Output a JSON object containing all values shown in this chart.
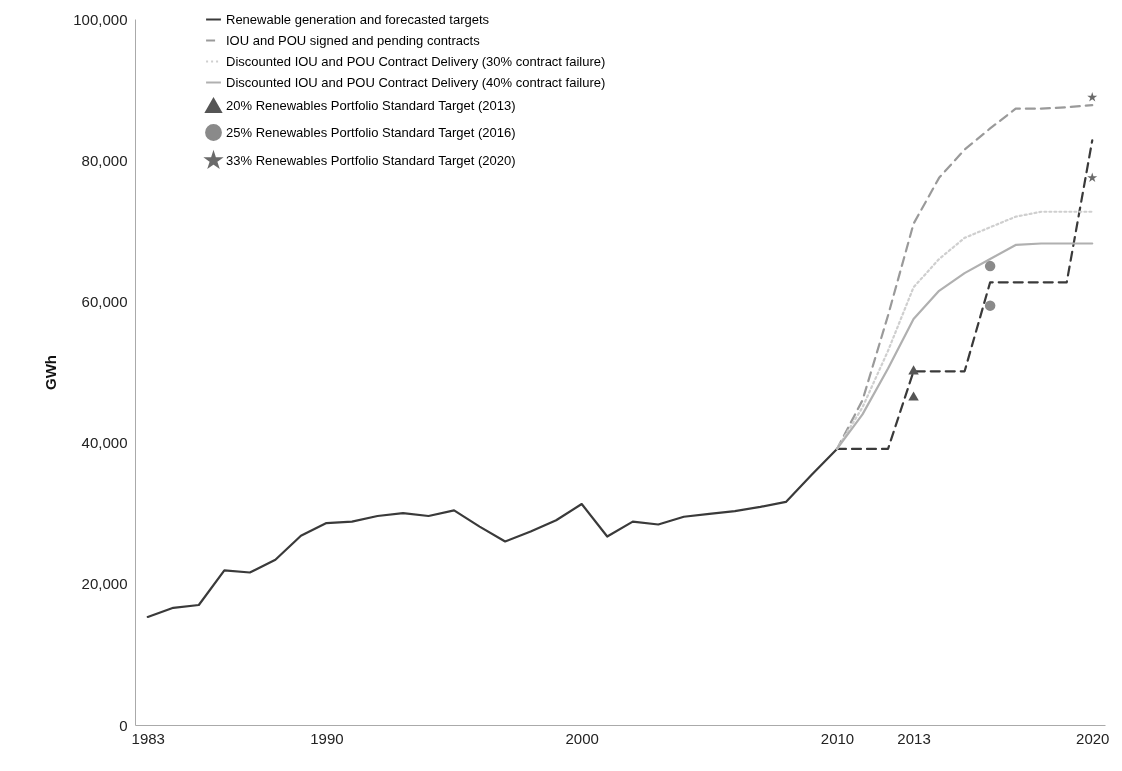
{
  "chart_data": {
    "type": "line",
    "ylabel": "GWh",
    "xlim": [
      1982.5,
      2020.5
    ],
    "xticks": [
      1983,
      1990,
      2000,
      2010,
      2013,
      2020
    ],
    "ylim": [
      0,
      100000
    ],
    "yticks": [
      0,
      {
        "value": 20000,
        "label": "20,000"
      },
      {
        "value": 40000,
        "label": "40,000"
      },
      {
        "value": 60000,
        "label": "60,000"
      },
      {
        "value": 80000,
        "label": "80,000"
      },
      {
        "value": 100000,
        "label": "100,000"
      }
    ],
    "legend": "top left",
    "series": [
      {
        "name": "Renewable generation and forecasted targets",
        "color": "#3a3a3a",
        "line_style": "solid",
        "x": [
          1983,
          1984,
          1985,
          1986,
          1987,
          1988,
          1989,
          1990,
          1991,
          1992,
          1993,
          1994,
          1995,
          1996,
          1997,
          1998,
          1999,
          2000,
          2001,
          2002,
          2003,
          2004,
          2005,
          2006,
          2007,
          2008,
          2009,
          2010
        ],
        "values": [
          15300,
          16600,
          17000,
          21900,
          21600,
          23400,
          26800,
          28600,
          28800,
          29600,
          30000,
          29600,
          30400,
          28100,
          26000,
          27400,
          29000,
          31300,
          26700,
          28800,
          28400,
          29500,
          29900,
          30300,
          30900,
          31600,
          35400,
          39100
        ]
      },
      {
        "color": "#3a3a3a",
        "line_style": "dashed",
        "x": [
          2010,
          2012,
          2013,
          2015,
          2016,
          2019,
          2020
        ],
        "values": [
          39100,
          39100,
          50100,
          50100,
          62700,
          62700,
          82800
        ]
      },
      {
        "name": "IOU and POU signed and pending contracts",
        "color": "#9a9a9a",
        "line_style": "dashed",
        "x": [
          2010,
          2011,
          2012,
          2013,
          2014,
          2015,
          2016,
          2017,
          2018,
          2019,
          2020
        ],
        "values": [
          39100,
          46000,
          58000,
          71000,
          77500,
          81500,
          84500,
          87300,
          87300,
          87500,
          87800
        ]
      },
      {
        "name": "Discounted IOU and POU Contract Delivery (30% contract failure)",
        "color": "#cfcfcf",
        "line_style": "dotted",
        "x": [
          2010,
          2011,
          2012,
          2013,
          2014,
          2015,
          2016,
          2017,
          2018,
          2019,
          2020
        ],
        "values": [
          39100,
          45000,
          53000,
          62000,
          66000,
          69000,
          70500,
          72000,
          72700,
          72700,
          72700
        ]
      },
      {
        "name": "Discounted IOU and POU Contract Delivery (40% contract failure)",
        "color": "#b0b0b0",
        "line_style": "solid",
        "x": [
          2010,
          2011,
          2012,
          2013,
          2014,
          2015,
          2016,
          2017,
          2018,
          2019,
          2020
        ],
        "values": [
          39100,
          44000,
          50500,
          57500,
          61500,
          64000,
          66000,
          68000,
          68200,
          68200,
          68200
        ]
      },
      {
        "name": "20% Renewables Portfolio Standard Target (2013)",
        "type": "scatter",
        "marker": "triangle",
        "color": "#555555",
        "x": [
          2013,
          2013
        ],
        "values": [
          50300,
          46600
        ]
      },
      {
        "name": "25% Renewables Portfolio Standard Target (2016)",
        "type": "scatter",
        "marker": "circle",
        "color": "#8a8a8a",
        "x": [
          2016,
          2016
        ],
        "values": [
          65000,
          59400
        ]
      },
      {
        "name": "33% Renewables Portfolio Standard Target (2020)",
        "type": "scatter",
        "marker": "star",
        "color": "#6a6a6a",
        "x": [
          2020,
          2020
        ],
        "values": [
          88900,
          77500
        ]
      }
    ]
  }
}
